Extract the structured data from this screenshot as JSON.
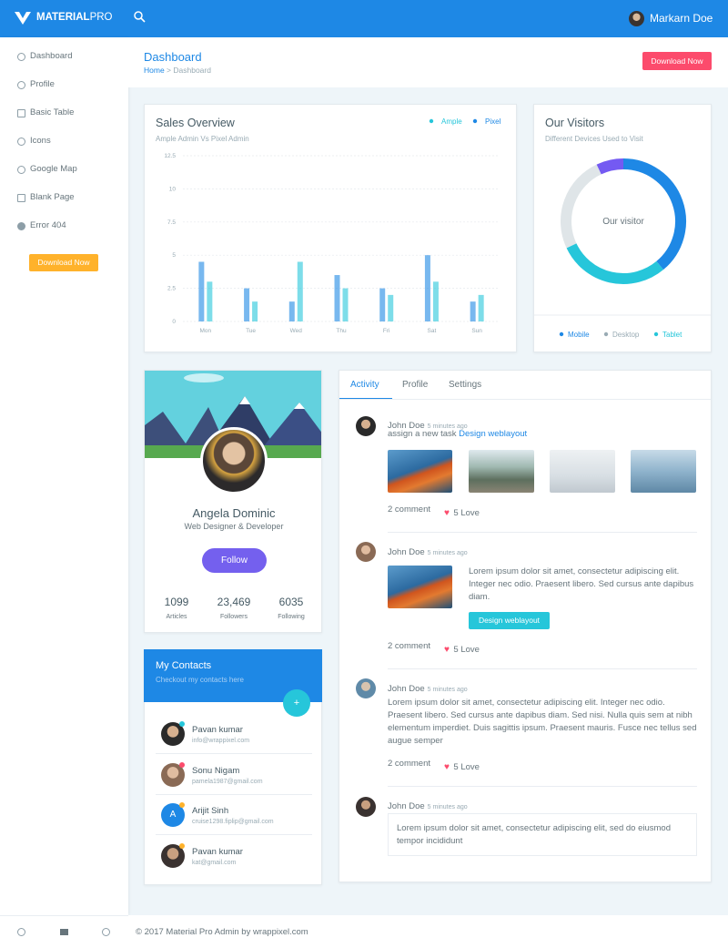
{
  "header": {
    "brand_bold": "MATERIAL",
    "brand_light": "PRO",
    "user": "Markarn Doe"
  },
  "sidebar": {
    "menu": [
      "Dashboard",
      "Profile",
      "Basic Table",
      "Icons",
      "Google Map",
      "Blank Page",
      "Error 404"
    ],
    "button": "Download Now"
  },
  "page_title": {
    "title": "Dashboard",
    "breadcrumb": [
      "Home",
      "Dashboard"
    ],
    "button": "Download Now"
  },
  "chart_data": [
    {
      "type": "bar",
      "title": "Sales Overview",
      "subtitle": "Ample Admin Vs Pixel Admin",
      "categories": [
        "Mon",
        "Tue",
        "Wed",
        "Thu",
        "Fri",
        "Sat",
        "Sun"
      ],
      "series": [
        {
          "name": "Ample",
          "color": "#26c6da",
          "values": [
            3,
            1.5,
            4.5,
            2.5,
            2,
            3,
            2
          ]
        },
        {
          "name": "Pixel",
          "color": "#1e88e5",
          "values": [
            4.5,
            2.5,
            1.5,
            3.5,
            2.5,
            5,
            1.5
          ]
        }
      ],
      "ylim": [
        0,
        12.5
      ],
      "yticks": [
        0,
        2.5,
        5,
        7.5,
        10,
        12.5
      ],
      "grid": true
    },
    {
      "type": "doughnut",
      "title": "Our Visitors",
      "subtitle": "Different Devices Used to Visit",
      "center_label": "Our visitor",
      "categories": [
        "Mobile",
        "Desktop",
        "Tablet",
        null
      ],
      "values": [
        39,
        25,
        29,
        7
      ],
      "colors": [
        "#1e88e5",
        "#dfe5e8",
        "#26c6da",
        "#745af2"
      ]
    }
  ],
  "profile": {
    "name": "Angela Dominic",
    "role": "Web Designer & Developer",
    "button": "Follow",
    "stats": [
      {
        "value": "1099",
        "label": "Articles"
      },
      {
        "value": "23,469",
        "label": "Followers"
      },
      {
        "value": "6035",
        "label": "Following"
      }
    ]
  },
  "contacts": {
    "title": "My Contacts",
    "subtitle": "Checkout my contacts here",
    "items": [
      {
        "name": "Pavan kumar",
        "email": "info@wrappixel.com"
      },
      {
        "name": "Sonu Nigam",
        "email": "pamela1987@gmail.com"
      },
      {
        "name": "Arijit Sinh",
        "email": "cruise1298.fiplip@gmail.com",
        "initial": "A"
      },
      {
        "name": "Pavan kumar",
        "email": "kat@gmail.com"
      }
    ]
  },
  "activity": {
    "tabs": [
      "Activity",
      "Profile",
      "Settings"
    ],
    "items": [
      {
        "name": "John Doe",
        "time": "5 minutes ago",
        "text": "assign a new task",
        "link": "Design weblayout",
        "comments": "2 comment",
        "love": "5 Love"
      },
      {
        "name": "John Doe",
        "time": "5 minutes ago",
        "text": "Lorem ipsum dolor sit amet, consectetur adipiscing elit. Integer nec odio. Praesent libero. Sed cursus ante dapibus diam.",
        "button": "Design weblayout",
        "comments": "2 comment",
        "love": "5 Love"
      },
      {
        "name": "John Doe",
        "time": "5 minutes ago",
        "text": "Lorem ipsum dolor sit amet, consectetur adipiscing elit. Integer nec odio. Praesent libero. Sed cursus ante dapibus diam. Sed nisi. Nulla quis sem at nibh elementum imperdiet. Duis sagittis ipsum. Praesent mauris. Fusce nec tellus sed augue semper",
        "comments": "2 comment",
        "love": "5 Love"
      },
      {
        "name": "John Doe",
        "time": "5 minutes ago",
        "quote": "Lorem ipsum dolor sit amet, consectetur adipiscing elit, sed do eiusmod tempor incididunt"
      }
    ]
  },
  "footer": "© 2017 Material Pro Admin by wrappixel.com"
}
